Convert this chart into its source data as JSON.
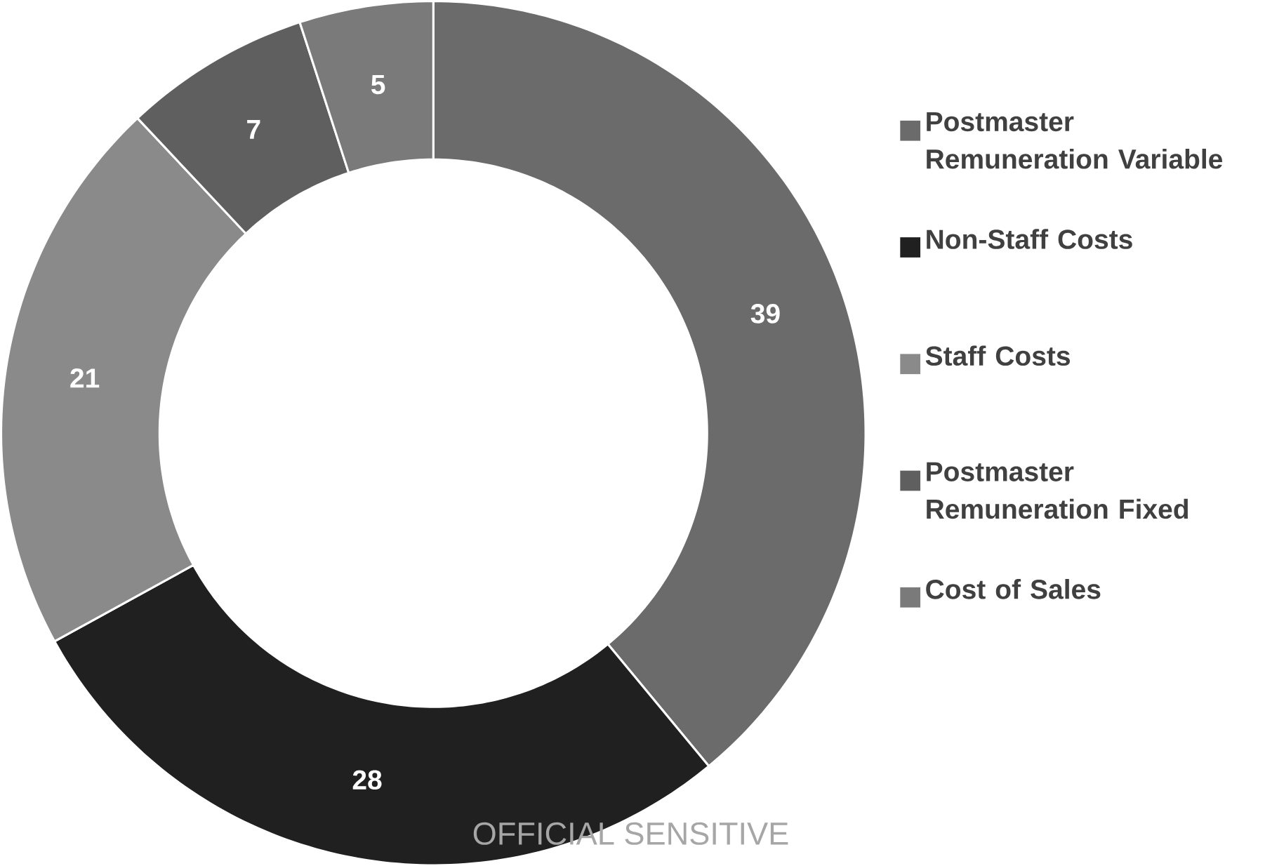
{
  "chart_data": {
    "type": "donut",
    "categories": [
      "Postmaster Remuneration Variable",
      "Non-Staff Costs",
      "Staff Costs",
      "Postmaster Remuneration Fixed",
      "Cost of Sales"
    ],
    "values": [
      39,
      28,
      21,
      7,
      5
    ],
    "colors": [
      "#6b6b6b",
      "#202020",
      "#8a8a8a",
      "#5f5f5f",
      "#7a7a7a"
    ],
    "data_labels": true,
    "legend": "right",
    "annotations": [
      "OFFICIAL SENSITIVE"
    ]
  }
}
